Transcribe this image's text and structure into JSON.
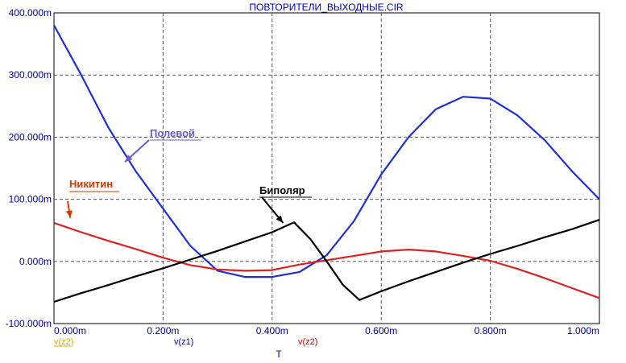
{
  "chart_data": {
    "type": "line",
    "title": "ПОВТОРИТЕЛИ_ВЫХОДНЫЕ.CIR",
    "xlabel": "T",
    "ylabel": "",
    "xlim": [
      0,
      1.0
    ],
    "ylim": [
      -0.1,
      0.4
    ],
    "grid": true,
    "x_tick_labels": [
      "0.000m",
      "0.200m",
      "0.400m",
      "0.600m",
      "0.800m",
      "1.000m"
    ],
    "x_ticks": [
      0,
      0.2,
      0.4,
      0.6,
      0.8,
      1.0
    ],
    "y_tick_labels": [
      "400.000m",
      "300.000m",
      "200.000m",
      "100.000m",
      "0.000m",
      "-100.000m"
    ],
    "y_ticks": [
      0.4,
      0.3,
      0.2,
      0.1,
      0.0,
      -0.1
    ],
    "legend": [
      {
        "label": "v(z2)",
        "color": "#d4b000"
      },
      {
        "label": "v(z1)",
        "color": "#0000c0"
      },
      {
        "label": "v(z2)",
        "color": "#c00000"
      }
    ],
    "series": [
      {
        "color": "#1f2fd8",
        "x": [
          0,
          0.05,
          0.1,
          0.15,
          0.2,
          0.25,
          0.3,
          0.35,
          0.4,
          0.45,
          0.5,
          0.55,
          0.6,
          0.65,
          0.7,
          0.75,
          0.8,
          0.85,
          0.9,
          0.95,
          1.0
        ],
        "y": [
          0.38,
          0.3,
          0.215,
          0.145,
          0.085,
          0.025,
          -0.015,
          -0.025,
          -0.025,
          -0.017,
          0.01,
          0.065,
          0.14,
          0.2,
          0.245,
          0.265,
          0.262,
          0.235,
          0.195,
          0.145,
          0.1
        ]
      },
      {
        "color": "#e02020",
        "x": [
          0,
          0.05,
          0.1,
          0.15,
          0.2,
          0.25,
          0.3,
          0.35,
          0.4,
          0.45,
          0.5,
          0.55,
          0.6,
          0.65,
          0.7,
          0.75,
          0.8,
          0.85,
          0.9,
          0.95,
          1.0
        ],
        "y": [
          0.062,
          0.047,
          0.033,
          0.02,
          0.006,
          -0.006,
          -0.013,
          -0.015,
          -0.014,
          -0.005,
          0.002,
          0.009,
          0.016,
          0.019,
          0.016,
          0.009,
          0.001,
          -0.012,
          -0.027,
          -0.043,
          -0.059
        ]
      },
      {
        "color": "#000000",
        "x": [
          0,
          0.05,
          0.1,
          0.15,
          0.2,
          0.25,
          0.3,
          0.35,
          0.4,
          0.44,
          0.47,
          0.5,
          0.53,
          0.56,
          0.6,
          0.65,
          0.7,
          0.75,
          0.8,
          0.85,
          0.9,
          0.95,
          1.0
        ],
        "y": [
          -0.065,
          -0.051,
          -0.038,
          -0.024,
          -0.011,
          0.003,
          0.017,
          0.032,
          0.047,
          0.063,
          0.036,
          0.0,
          -0.038,
          -0.062,
          -0.048,
          -0.032,
          -0.017,
          -0.002,
          0.012,
          0.025,
          0.039,
          0.052,
          0.067
        ]
      }
    ],
    "annotations": [
      {
        "text": "Полевой",
        "color": "#6a5ad8",
        "target": [
          0.13,
          0.16
        ]
      },
      {
        "text": "Никитин",
        "color": "#d43b00",
        "target": [
          0.03,
          0.07
        ]
      },
      {
        "text": "Биполяр",
        "color": "#000000",
        "target": [
          0.42,
          0.062
        ]
      }
    ]
  }
}
